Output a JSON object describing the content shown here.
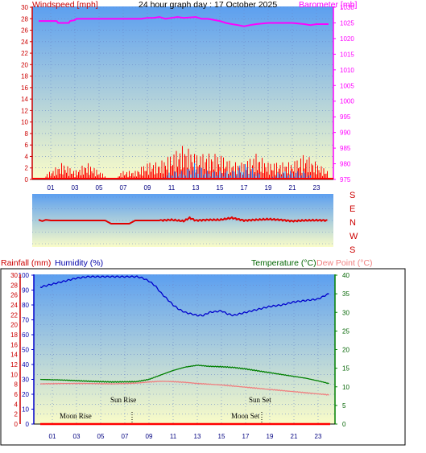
{
  "header": {
    "title": "24 hour graph day : 17 October 2025",
    "windspeed_label": "Windspeed [mph]",
    "barometer_label": "Barometer [mb]",
    "rainfall_label": "Rainfall (mm)",
    "humidity_label": "Humidity (%)",
    "temperature_label": "Temperature (°C)",
    "dewpoint_label": "Dew Point (°C)",
    "compass": [
      "S",
      "E",
      "N",
      "W",
      "S"
    ]
  },
  "astro": {
    "moon_rise": "Moon Rise",
    "sun_rise": "Sun Rise",
    "sun_set": "Sun Set",
    "moon_set": "Moon Set"
  },
  "colors": {
    "wind": "#ff0000",
    "gust": "#1e7bff",
    "barometer": "#ff00ff",
    "direction": "#e00000",
    "humidity": "#0000cc",
    "temperature": "#008000",
    "dewpoint": "#f08080",
    "rain": "#ff0000",
    "sky_top": "#5c9ff0",
    "sky_bottom": "#fafcc8"
  },
  "chart_data": [
    {
      "type": "line",
      "title": "24 hour graph day : 17 October 2025",
      "x_ticks": [
        "01",
        "03",
        "05",
        "07",
        "09",
        "11",
        "13",
        "15",
        "17",
        "19",
        "21",
        "23"
      ],
      "x_unit_hours": [
        0,
        24
      ],
      "y_left": {
        "label": "Windspeed [mph]",
        "range": [
          0,
          30
        ],
        "ticks": [
          "0",
          "2",
          "4",
          "6",
          "8",
          "10",
          "12",
          "14",
          "16",
          "18",
          "20",
          "22",
          "24",
          "26",
          "28",
          "30"
        ]
      },
      "y_right": {
        "label": "Barometer [mb]",
        "range": [
          975,
          1030
        ],
        "ticks": [
          "975",
          "980",
          "985",
          "990",
          "995",
          "1000",
          "1005",
          "1010",
          "1015",
          "1020",
          "1025",
          "1030"
        ]
      },
      "series": [
        {
          "name": "Barometer [mb]",
          "axis": "right",
          "x": [
            0,
            1.5,
            1.6,
            2.5,
            2.6,
            3.0,
            3.1,
            7.5,
            8.0,
            8.5,
            9.0,
            9.5,
            10.0,
            10.5,
            11.0,
            11.5,
            12.0,
            13.0,
            13.5,
            14.0,
            15.0,
            15.5,
            16.0,
            16.5,
            17.0,
            17.5,
            18.0,
            19.0,
            20.0,
            21.0,
            22.0,
            22.5,
            23.0,
            24.0
          ],
          "y": [
            1025.6,
            1025.6,
            1025.0,
            1025.0,
            1025.6,
            1025.9,
            1026.3,
            1026.3,
            1026.3,
            1026.3,
            1026.6,
            1026.6,
            1026.9,
            1026.3,
            1026.6,
            1026.9,
            1026.6,
            1026.9,
            1026.3,
            1026.3,
            1025.6,
            1025.0,
            1024.6,
            1024.3,
            1023.9,
            1024.3,
            1024.6,
            1025.0,
            1025.0,
            1025.0,
            1024.6,
            1024.3,
            1024.6,
            1024.6
          ]
        },
        {
          "name": "Windspeed [mph]",
          "axis": "left",
          "x": [
            0,
            1,
            2,
            3,
            4,
            5,
            6,
            7,
            8,
            9,
            10,
            11,
            12,
            13,
            14,
            15,
            16,
            17,
            18,
            19,
            20,
            21,
            22,
            23,
            24
          ],
          "y": [
            0,
            1,
            2,
            1,
            2,
            1,
            0,
            1,
            1,
            2,
            2,
            3,
            4,
            3,
            3,
            3,
            2,
            2,
            3,
            2,
            2,
            2,
            3,
            2,
            1
          ]
        },
        {
          "name": "Gust",
          "axis": "left",
          "x": [
            0,
            9,
            10,
            11,
            12,
            13,
            14,
            15,
            16,
            17,
            18,
            19,
            20,
            21,
            22,
            23,
            24
          ],
          "y": [
            0,
            0,
            0,
            1,
            1,
            2,
            1,
            1,
            1,
            2,
            1,
            0,
            1,
            1,
            1,
            0,
            0
          ]
        }
      ]
    },
    {
      "type": "line",
      "x_unit_hours": [
        0,
        24
      ],
      "y_right": {
        "labels": [
          "S",
          "E",
          "N",
          "W",
          "S"
        ]
      },
      "series": [
        {
          "name": "Wind Direction",
          "x": [
            0,
            0.3,
            0.6,
            1.0,
            2.5,
            3.0,
            5.5,
            6.0,
            7.5,
            8.0,
            10.0,
            11.0,
            12.0,
            12.5,
            13.0,
            14.0,
            15.0,
            16.0,
            17.0,
            18.0,
            19.0,
            20.0,
            21.0,
            22.0,
            23.0,
            24.0
          ],
          "y": [
            185,
            175,
            185,
            180,
            180,
            180,
            180,
            155,
            155,
            180,
            180,
            185,
            175,
            200,
            180,
            185,
            185,
            200,
            180,
            185,
            190,
            185,
            175,
            180,
            182,
            180
          ]
        }
      ]
    },
    {
      "type": "line",
      "x_ticks": [
        "01",
        "03",
        "05",
        "07",
        "09",
        "11",
        "13",
        "15",
        "17",
        "19",
        "21",
        "23"
      ],
      "x_unit_hours": [
        0,
        24
      ],
      "y_rain": {
        "label": "Rainfall (mm)",
        "range": [
          0,
          30
        ],
        "ticks": [
          "0",
          "2",
          "4",
          "6",
          "8",
          "10",
          "12",
          "14",
          "16",
          "18",
          "20",
          "22",
          "24",
          "26",
          "28",
          "30"
        ]
      },
      "y_humidity": {
        "label": "Humidity (%)",
        "range": [
          0,
          100
        ],
        "ticks": [
          "0",
          "10",
          "20",
          "30",
          "40",
          "50",
          "60",
          "70",
          "80",
          "90",
          "100"
        ]
      },
      "y_temp": {
        "label": "Temperature (°C)",
        "range": [
          0,
          40
        ],
        "ticks": [
          "0",
          "5",
          "10",
          "15",
          "20",
          "25",
          "30",
          "35",
          "40"
        ]
      },
      "series": [
        {
          "name": "Humidity (%)",
          "axis": "humidity",
          "x": [
            0,
            1,
            2,
            3,
            4,
            5,
            6,
            7,
            8,
            8.5,
            9,
            9.5,
            10,
            10.5,
            11,
            11.5,
            12,
            12.5,
            13,
            13.5,
            14,
            15,
            15.5,
            16,
            17,
            18,
            19,
            20,
            21,
            22,
            23,
            23.5,
            24
          ],
          "y": [
            92,
            94,
            96,
            98,
            99,
            99,
            99,
            99,
            99,
            98,
            96,
            93,
            88,
            84,
            80,
            77,
            75,
            74,
            73,
            73,
            75,
            76,
            74,
            73,
            75,
            77,
            79,
            80,
            82,
            83,
            84,
            86,
            88
          ]
        },
        {
          "name": "Temperature (°C)",
          "axis": "temp",
          "x": [
            0,
            2,
            4,
            6,
            8,
            9,
            10,
            11,
            12,
            13,
            14,
            15,
            16,
            17,
            18,
            19,
            20,
            21,
            22,
            23,
            24
          ],
          "y": [
            12,
            11.8,
            11.5,
            11.3,
            11.4,
            12.0,
            13.2,
            14.4,
            15.3,
            15.8,
            15.5,
            15.4,
            15.2,
            14.8,
            14.3,
            13.8,
            13.3,
            12.8,
            12.3,
            11.6,
            10.8
          ]
        },
        {
          "name": "Dew Point (°C)",
          "axis": "temp",
          "x": [
            0,
            2,
            4,
            6,
            8,
            9,
            10,
            11,
            12,
            13,
            14,
            15,
            16,
            17,
            18,
            19,
            20,
            21,
            22,
            23,
            24
          ],
          "y": [
            10.8,
            10.9,
            10.9,
            10.8,
            11.0,
            11.3,
            11.5,
            11.4,
            11.2,
            10.9,
            10.7,
            10.5,
            10.2,
            9.9,
            9.6,
            9.3,
            9.0,
            8.7,
            8.4,
            8.1,
            7.8
          ]
        },
        {
          "name": "Rainfall (mm)",
          "axis": "rain",
          "x": [
            0,
            24
          ],
          "y": [
            0,
            0
          ]
        }
      ],
      "sun_rise_hour": 7.5,
      "sun_set_hour": 18.3
    }
  ]
}
